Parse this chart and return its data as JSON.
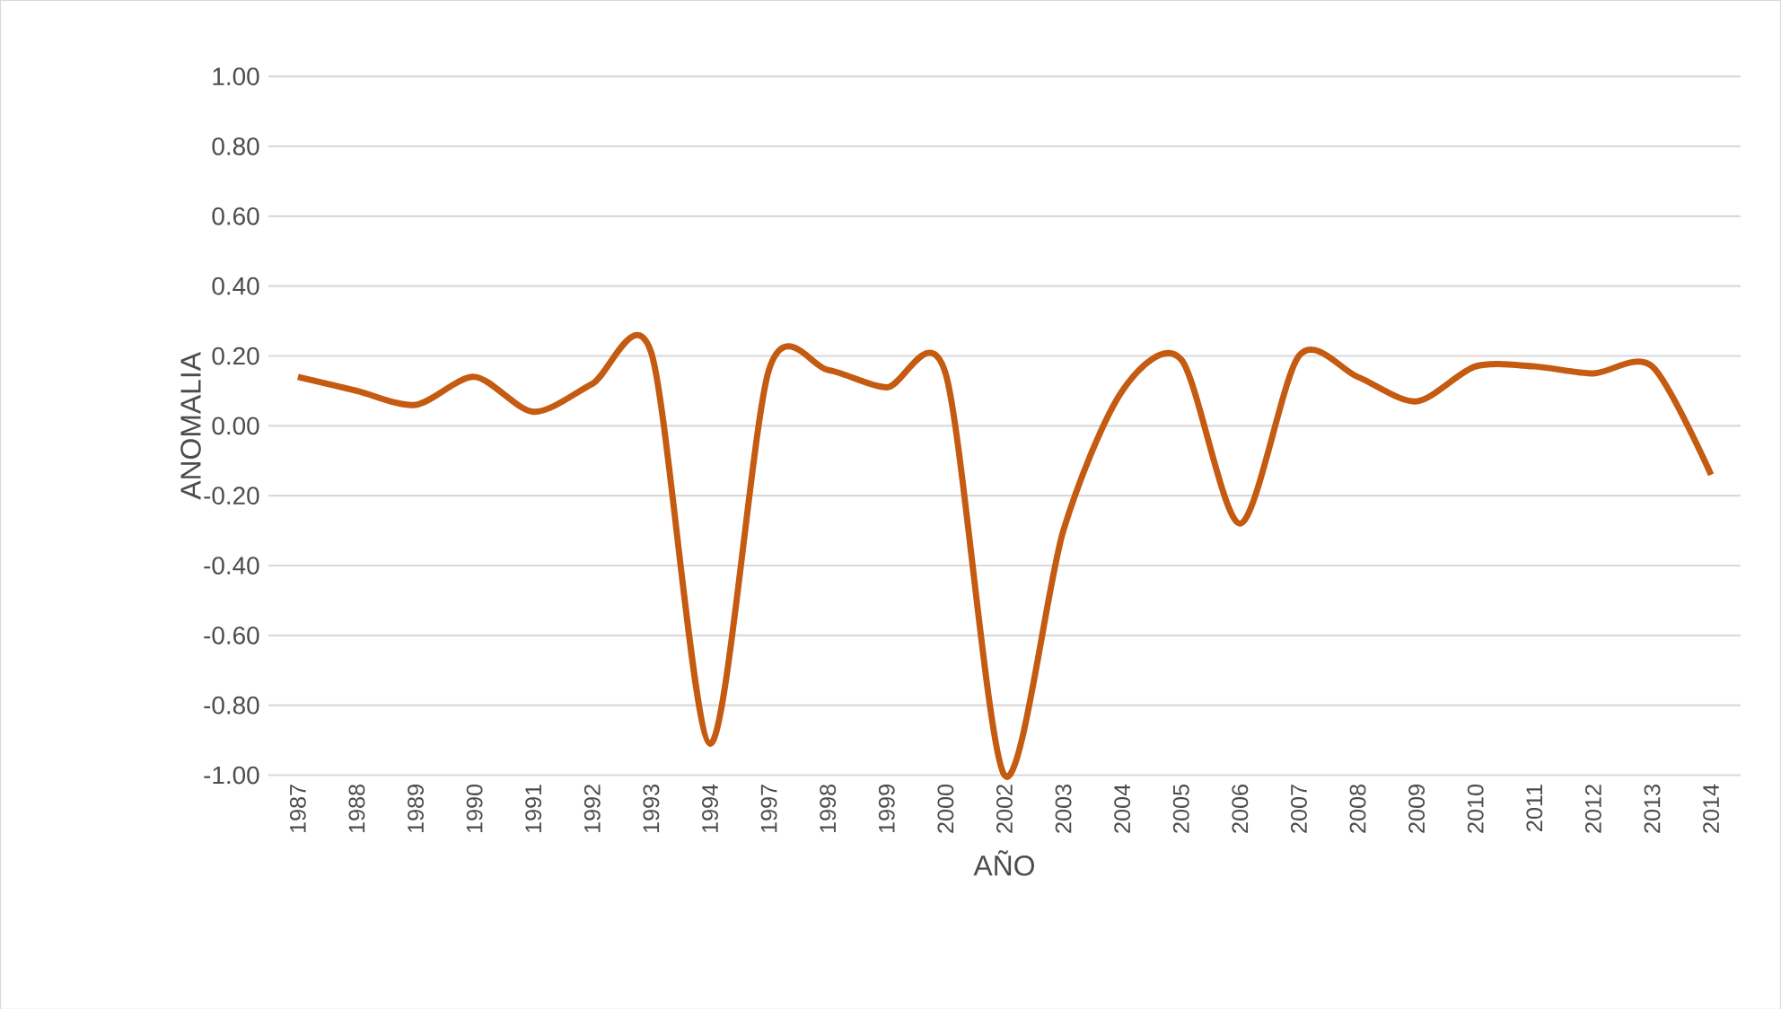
{
  "chart_data": {
    "type": "line",
    "xlabel": "AÑO",
    "ylabel": "ANOMALIA",
    "categories": [
      "1987",
      "1988",
      "1989",
      "1990",
      "1991",
      "1992",
      "1993",
      "1994",
      "1997",
      "1998",
      "1999",
      "2000",
      "2002",
      "2003",
      "2004",
      "2005",
      "2006",
      "2007",
      "2008",
      "2009",
      "2010",
      "2011",
      "2012",
      "2013",
      "2014"
    ],
    "series": [
      {
        "color": "#c55a11",
        "values": [
          0.14,
          0.1,
          0.06,
          0.14,
          0.04,
          0.12,
          0.21,
          -0.91,
          0.16,
          0.16,
          0.11,
          0.15,
          -1.0,
          -0.3,
          0.1,
          0.19,
          -0.28,
          0.2,
          0.14,
          0.07,
          0.17,
          0.17,
          0.15,
          0.17,
          -0.14
        ]
      }
    ],
    "ylim": [
      -1.0,
      1.0
    ],
    "yticks": [
      {
        "value": -1.0,
        "label": "-1.00"
      },
      {
        "value": -0.8,
        "label": "-0.80"
      },
      {
        "value": -0.6,
        "label": "-0.60"
      },
      {
        "value": -0.4,
        "label": "-0.40"
      },
      {
        "value": -0.2,
        "label": "-0.20"
      },
      {
        "value": 0.0,
        "label": "0.00"
      },
      {
        "value": 0.2,
        "label": "0.20"
      },
      {
        "value": 0.4,
        "label": "0.40"
      },
      {
        "value": 0.6,
        "label": "0.60"
      },
      {
        "value": 0.8,
        "label": "0.80"
      },
      {
        "value": 1.0,
        "label": "1.00"
      }
    ],
    "grid": "y",
    "marker": "none",
    "line_style": "solid"
  }
}
